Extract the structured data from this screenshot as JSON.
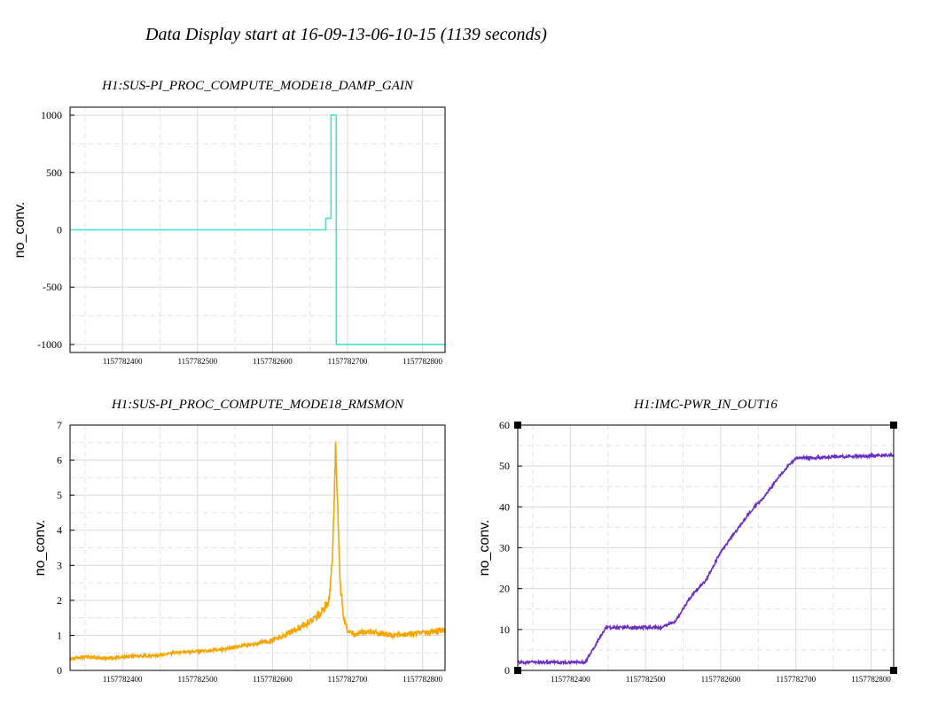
{
  "page": {
    "title": "Data Display start at 16-09-13-06-10-15 (1139 seconds)"
  },
  "chart_data": [
    {
      "type": "line",
      "title": "H1:SUS-PI_PROC_COMPUTE_MODE18_DAMP_GAIN",
      "ylabel": "no_conv.",
      "xlabel": "",
      "xlim": [
        1157782330,
        1157782830
      ],
      "ylim": [
        -1070,
        1070
      ],
      "yticks": [
        -1000,
        -500,
        0,
        500,
        1000
      ],
      "xticks": [
        1157782400,
        1157782500,
        1157782600,
        1157782700,
        1157782800
      ],
      "grid": true,
      "color": "#40e0d0",
      "step": true,
      "series": [
        {
          "x": [
            1157782330,
            1157782671,
            1157782671,
            1157782678,
            1157782678,
            1157782685,
            1157782685,
            1157782830
          ],
          "y": [
            0,
            0,
            100,
            100,
            1000,
            1000,
            -1000,
            -1000
          ]
        }
      ]
    },
    {
      "type": "line",
      "title": "H1:SUS-PI_PROC_COMPUTE_MODE18_RMSMON",
      "ylabel": "no_conv.",
      "xlabel": "",
      "xlim": [
        1157782330,
        1157782830
      ],
      "ylim": [
        0,
        7
      ],
      "yticks": [
        0,
        1,
        2,
        3,
        4,
        5,
        6,
        7
      ],
      "xticks": [
        1157782400,
        1157782500,
        1157782600,
        1157782700,
        1157782800
      ],
      "grid": true,
      "color": "#f5a500",
      "noise": 0.08,
      "series": [
        {
          "x": [
            1157782330,
            1157782350,
            1157782380,
            1157782410,
            1157782440,
            1157782470,
            1157782500,
            1157782530,
            1157782560,
            1157782590,
            1157782610,
            1157782630,
            1157782650,
            1157782665,
            1157782675,
            1157782680,
            1157782684,
            1157782687,
            1157782690,
            1157782695,
            1157782700,
            1157782710,
            1157782730,
            1157782760,
            1157782790,
            1157782830
          ],
          "y": [
            0.35,
            0.38,
            0.35,
            0.4,
            0.42,
            0.5,
            0.55,
            0.6,
            0.7,
            0.8,
            0.95,
            1.15,
            1.4,
            1.65,
            2.0,
            3.2,
            6.4,
            4.5,
            2.5,
            1.5,
            1.1,
            1.05,
            1.1,
            1.0,
            1.05,
            1.15
          ]
        }
      ]
    },
    {
      "type": "line",
      "title": "H1:IMC-PWR_IN_OUT16",
      "ylabel": "no_conv.",
      "xlabel": "",
      "xlim": [
        1157782330,
        1157782830
      ],
      "ylim": [
        0,
        60
      ],
      "yticks": [
        0,
        10,
        20,
        30,
        40,
        50,
        60
      ],
      "xticks": [
        1157782400,
        1157782500,
        1157782600,
        1157782700,
        1157782800
      ],
      "grid": true,
      "color": "#6a2fc0",
      "noise": 0.35,
      "series": [
        {
          "x": [
            1157782330,
            1157782420,
            1157782447,
            1157782520,
            1157782540,
            1157782560,
            1157782580,
            1157782600,
            1157782620,
            1157782640,
            1157782660,
            1157782680,
            1157782700,
            1157782720,
            1157782760,
            1157782830
          ],
          "y": [
            2,
            2,
            10.5,
            10.5,
            12,
            18,
            22,
            29,
            34,
            39,
            43,
            48,
            52,
            52,
            52.3,
            52.7
          ]
        }
      ]
    }
  ]
}
